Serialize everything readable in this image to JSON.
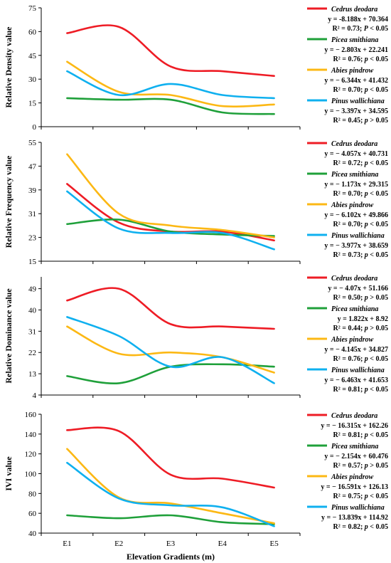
{
  "chart_data": [
    {
      "type": "line",
      "ylabel": "Relative Density value",
      "ylim": [
        0,
        75
      ],
      "yticks": [
        "0",
        "15",
        "30",
        "45",
        "60",
        "75"
      ],
      "categories": [
        "E1",
        "E2",
        "E3",
        "E4",
        "E5"
      ],
      "series": [
        {
          "name": "Cedrus deodara",
          "color": "#ee1c25",
          "values": [
            59,
            63,
            38,
            35,
            32
          ],
          "equation": "y = -8.188x + 70.364",
          "stats": {
            "r2": "R² = 0.73; ",
            "p": "P",
            "rest": " < 0.05"
          }
        },
        {
          "name": "Picea smithiana",
          "color": "#1fa03a",
          "values": [
            18,
            17,
            17,
            9,
            8
          ],
          "equation": "y = − 2.803x + 22.241",
          "stats": {
            "r2": "R² = 0.76; ",
            "p": "p",
            "rest": " < 0.05"
          }
        },
        {
          "name": "Abies pindrow",
          "color": "#fcb814",
          "values": [
            41,
            22,
            20,
            13,
            14
          ],
          "equation": "y = − 6.344x + 41.432",
          "stats": {
            "r2": "R² = 0.70; ",
            "p": "p",
            "rest": " < 0.05"
          }
        },
        {
          "name": "Pinus wallichiana",
          "color": "#0fb0ef",
          "values": [
            35,
            20,
            27,
            20,
            18
          ],
          "equation": "y = − 3.397x + 34.595",
          "stats": {
            "r2": "R² = 0.45; ",
            "p": "p",
            "rest": " > 0.05"
          }
        }
      ]
    },
    {
      "type": "line",
      "ylabel": "Relative Frequency value",
      "ylim": [
        15,
        55
      ],
      "yticks": [
        "15",
        "23",
        "31",
        "39",
        "47",
        "55"
      ],
      "categories": [
        "E1",
        "E2",
        "E3",
        "E4",
        "E5"
      ],
      "series": [
        {
          "name": "Cedrus deodara",
          "color": "#ee1c25",
          "values": [
            41,
            28,
            25,
            25,
            22
          ],
          "equation": "y = − 4.057x + 40.731",
          "stats": {
            "r2": "R² = 0.72; ",
            "p": "p",
            "rest": " < 0.05"
          }
        },
        {
          "name": "Picea smithiana",
          "color": "#1fa03a",
          "values": [
            27.5,
            29,
            25,
            24,
            23.5
          ],
          "equation": "y = − 1.173x + 29.315",
          "stats": {
            "r2": "R² = 0.70; ",
            "p": "p",
            "rest": " < 0.05"
          }
        },
        {
          "name": "Abies pindrow",
          "color": "#fcb814",
          "values": [
            51,
            31,
            27,
            25.5,
            23
          ],
          "equation": "y = − 6.102x + 49.866",
          "stats": {
            "r2": "R² = 0.70; ",
            "p": "p",
            "rest": " < 0.05"
          }
        },
        {
          "name": "Pinus wallichiana",
          "color": "#0fb0ef",
          "values": [
            38.5,
            26,
            24.5,
            24.5,
            19
          ],
          "equation": "y = − 3.977x + 38.659",
          "stats": {
            "r2": "R² = 0.73; ",
            "p": "p",
            "rest": " < 0.05"
          }
        }
      ]
    },
    {
      "type": "line",
      "ylabel": "Relative Dominance value",
      "ylim": [
        4,
        54
      ],
      "yticks": [
        "4",
        "13",
        "22",
        "31",
        "40",
        "49"
      ],
      "categories": [
        "E1",
        "E2",
        "E3",
        "E4",
        "E5"
      ],
      "series": [
        {
          "name": "Cedrus deodara",
          "color": "#ee1c25",
          "values": [
            44,
            49,
            34,
            33,
            32
          ],
          "equation": "y = − 4.07x + 51.166",
          "stats": {
            "r2": "R² = 0.50; ",
            "p": "p",
            "rest": " > 0.05"
          }
        },
        {
          "name": "Picea smithiana",
          "color": "#1fa03a",
          "values": [
            12,
            9,
            16,
            17,
            16
          ],
          "equation": "y = 1.822x + 8.92",
          "stats": {
            "r2": "R² = 0.44; ",
            "p": "p",
            "rest": " > 0.05"
          }
        },
        {
          "name": "Abies pindrow",
          "color": "#fcb814",
          "values": [
            33,
            21.5,
            22,
            20,
            13.5
          ],
          "equation": "y = − 4.145x + 34.827",
          "stats": {
            "r2": "R² = 0.76; ",
            "p": "p",
            "rest": " < 0.05"
          }
        },
        {
          "name": "Pinus wallichiana",
          "color": "#0fb0ef",
          "values": [
            37,
            29,
            16,
            20,
            9
          ],
          "equation": "y = − 6.463x + 41.653",
          "stats": {
            "r2": "R² = 0.81; ",
            "p": "p",
            "rest": " < 0.05"
          }
        }
      ]
    },
    {
      "type": "line",
      "ylabel": "IVI value",
      "ylim": [
        40,
        160
      ],
      "yticks": [
        "40",
        "60",
        "80",
        "100",
        "120",
        "140",
        "160"
      ],
      "xlabel": "Elevation Gradients (m)",
      "categories": [
        "E1",
        "E2",
        "E3",
        "E4",
        "E5"
      ],
      "series": [
        {
          "name": "Cedrus deodara",
          "color": "#ee1c25",
          "values": [
            144,
            143,
            99,
            95,
            86
          ],
          "equation": "y = − 16.315x + 162.26",
          "stats": {
            "r2": "R² = 0.81; ",
            "p": "p",
            "rest": " < 0.05"
          }
        },
        {
          "name": "Picea smithiana",
          "color": "#1fa03a",
          "values": [
            58,
            55,
            58,
            51,
            49
          ],
          "equation": "y = − 2.154x + 60.476",
          "stats": {
            "r2": "R² = 0.57; ",
            "p": "p",
            "rest": " > 0.05"
          }
        },
        {
          "name": "Abies pindrow",
          "color": "#fcb814",
          "values": [
            125,
            76,
            70,
            60,
            50
          ],
          "equation": "y = − 16.591x + 126.13",
          "stats": {
            "r2": "R² = 0.75; ",
            "p": "p",
            "rest": " < 0.05"
          }
        },
        {
          "name": "Pinus wallichiana",
          "color": "#0fb0ef",
          "values": [
            111,
            75,
            68,
            66,
            47
          ],
          "equation": "y = − 13.839x + 114.92",
          "stats": {
            "r2": "R² = 0.82; ",
            "p": "p",
            "rest": " < 0.05"
          }
        }
      ]
    }
  ]
}
